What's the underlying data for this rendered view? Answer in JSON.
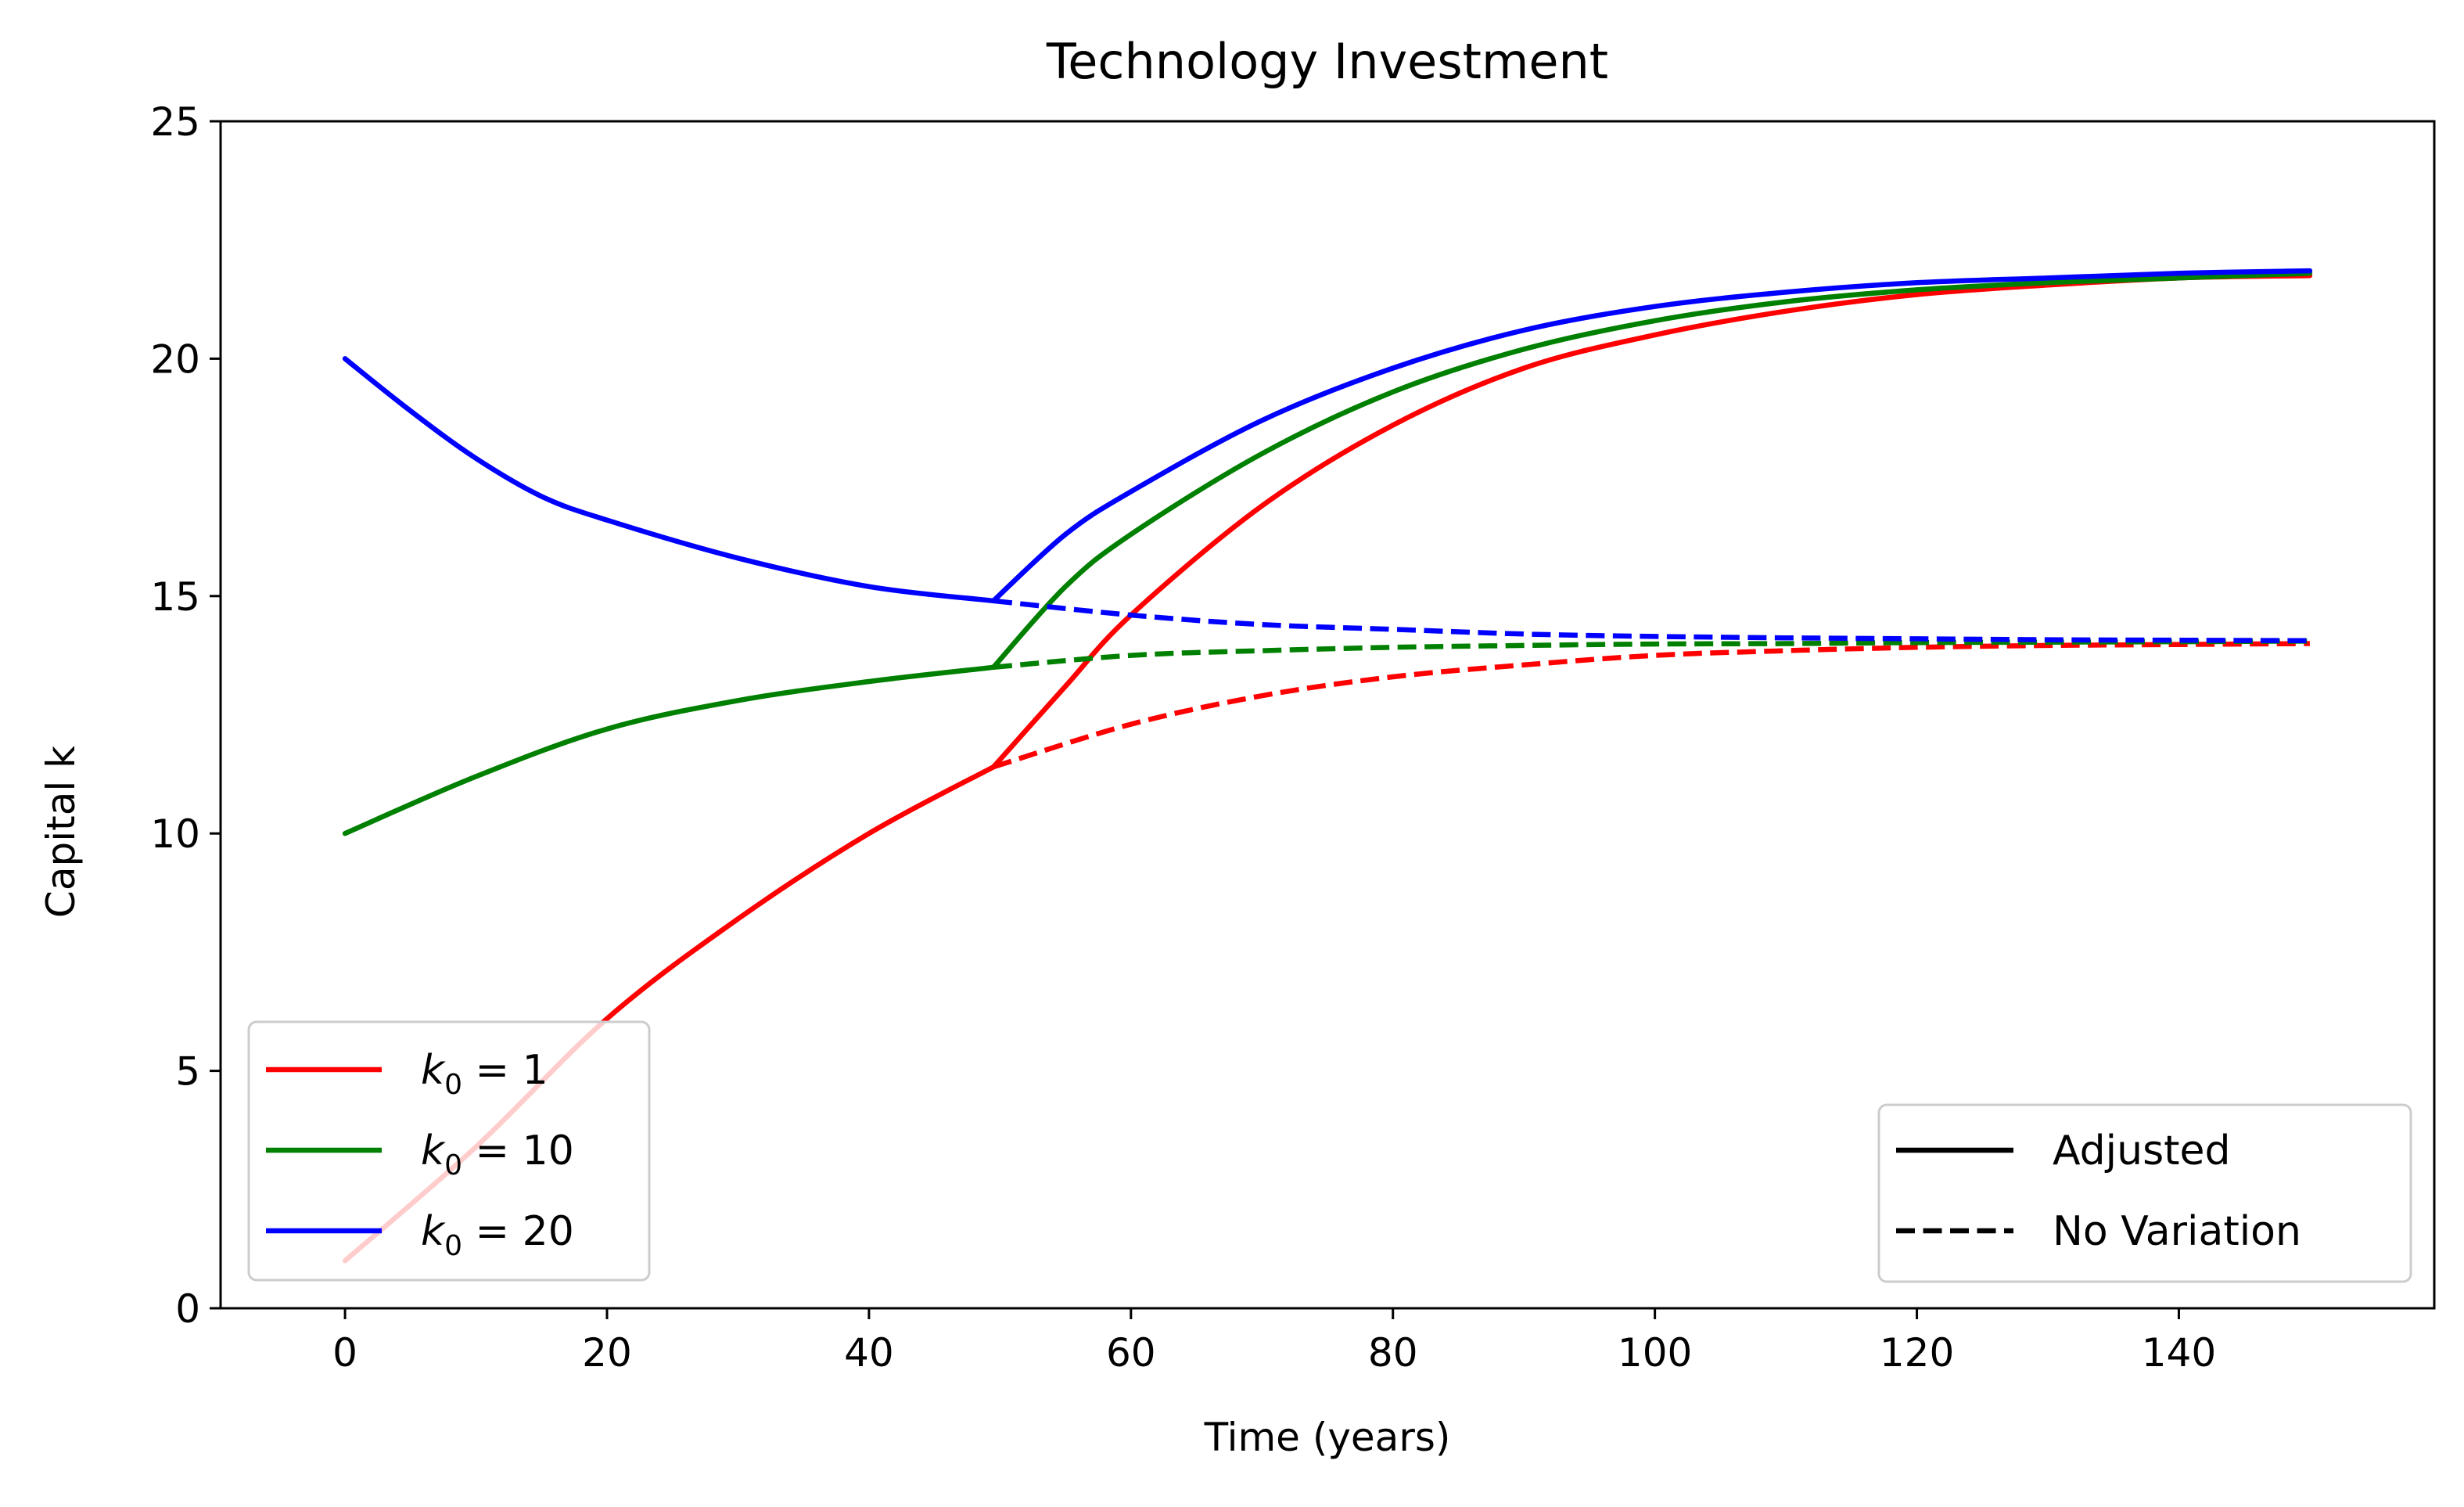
{
  "chart_data": {
    "type": "line",
    "title": "Technology Investment",
    "xlabel": "Time (years)",
    "ylabel": "Capital k",
    "xlim": [
      -9.5,
      159.5
    ],
    "ylim": [
      0,
      25
    ],
    "xticks": [
      0,
      20,
      40,
      60,
      80,
      100,
      120,
      140
    ],
    "yticks": [
      0,
      5,
      10,
      15,
      20,
      25
    ],
    "grid": false,
    "switch_year": 49.5,
    "series": [
      {
        "name": "k0 = 1",
        "legend_label_symbol": "k",
        "legend_label_subscript": "0",
        "legend_label_rest": " = 1",
        "color": "#ff0000",
        "adjusted": {
          "x": [
            0,
            10,
            20,
            30,
            40,
            49.5,
            55,
            60,
            70,
            80,
            90,
            100,
            110,
            120,
            130,
            140,
            150
          ],
          "y": [
            1.0,
            3.4,
            6.1,
            8.2,
            10.0,
            11.4,
            13.1,
            14.6,
            16.9,
            18.6,
            19.8,
            20.5,
            21.0,
            21.35,
            21.55,
            21.7,
            21.75
          ]
        },
        "no_variation": {
          "x": [
            49.5,
            60,
            70,
            80,
            90,
            100,
            110,
            120,
            130,
            140,
            150
          ],
          "y": [
            11.4,
            12.3,
            12.9,
            13.3,
            13.55,
            13.75,
            13.85,
            13.92,
            13.96,
            13.98,
            14.0
          ]
        }
      },
      {
        "name": "k0 = 10",
        "legend_label_symbol": "k",
        "legend_label_subscript": "0",
        "legend_label_rest": " = 10",
        "color": "#008000",
        "adjusted": {
          "x": [
            0,
            10,
            20,
            30,
            40,
            49.5,
            55,
            60,
            70,
            80,
            90,
            100,
            110,
            120,
            130,
            140,
            150
          ],
          "y": [
            10.0,
            11.2,
            12.2,
            12.8,
            13.2,
            13.5,
            15.2,
            16.3,
            18.0,
            19.3,
            20.2,
            20.8,
            21.2,
            21.45,
            21.6,
            21.7,
            21.8
          ]
        },
        "no_variation": {
          "x": [
            49.5,
            60,
            70,
            80,
            90,
            100,
            110,
            120,
            130,
            140,
            150
          ],
          "y": [
            13.5,
            13.75,
            13.85,
            13.92,
            13.96,
            13.99,
            14.0,
            14.02,
            14.03,
            14.04,
            14.05
          ]
        }
      },
      {
        "name": "k0 = 20",
        "legend_label_symbol": "k",
        "legend_label_subscript": "0",
        "legend_label_rest": " = 20",
        "color": "#0000ff",
        "adjusted": {
          "x": [
            0,
            5,
            10,
            15,
            20,
            30,
            40,
            49.5,
            55,
            60,
            70,
            80,
            90,
            100,
            110,
            120,
            130,
            140,
            150
          ],
          "y": [
            20.0,
            18.9,
            17.9,
            17.1,
            16.6,
            15.8,
            15.2,
            14.9,
            16.3,
            17.2,
            18.7,
            19.8,
            20.6,
            21.1,
            21.4,
            21.6,
            21.7,
            21.8,
            21.85
          ]
        },
        "no_variation": {
          "x": [
            49.5,
            60,
            70,
            80,
            90,
            100,
            110,
            120,
            130,
            140,
            150
          ],
          "y": [
            14.9,
            14.6,
            14.4,
            14.3,
            14.2,
            14.15,
            14.12,
            14.1,
            14.08,
            14.07,
            14.06
          ]
        }
      }
    ],
    "legend_series": {
      "location": "lower-left"
    },
    "legend_style": {
      "location": "lower-right",
      "entries": [
        {
          "label": "Adjusted",
          "dash": "solid",
          "color": "#000000"
        },
        {
          "label": "No Variation",
          "dash": "dashed",
          "color": "#000000"
        }
      ]
    }
  }
}
